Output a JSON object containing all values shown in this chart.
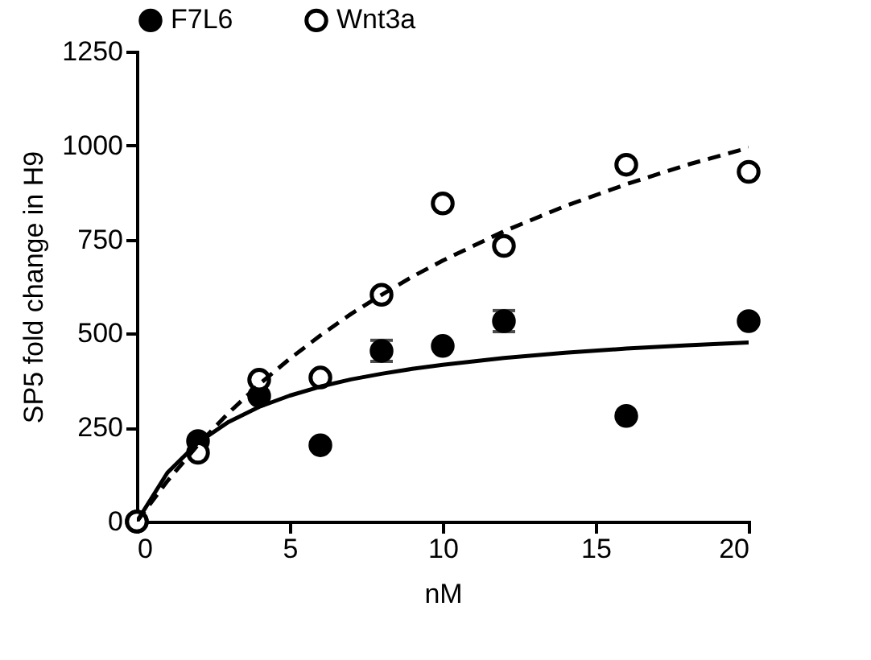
{
  "chart_data": {
    "type": "scatter",
    "xlabel": "nM",
    "ylabel": "SP5 fold change in H9",
    "x": [
      0,
      2,
      4,
      6,
      8,
      10,
      12,
      16,
      20
    ],
    "series": [
      {
        "name": "F7L6",
        "type": "scatter",
        "color": "#000000",
        "marker": "circle",
        "values": [
          0,
          214,
          334,
          203,
          454,
          467,
          533,
          281,
          533
        ],
        "errors": [
          null,
          null,
          null,
          null,
          28,
          null,
          28,
          null,
          null
        ]
      },
      {
        "name": "Wnt3a",
        "type": "scatter",
        "color": "#000000",
        "marker": "circle",
        "values": [
          0,
          183,
          377,
          383,
          603,
          846,
          733,
          949,
          930
        ]
      },
      {
        "type": "line",
        "color": "#000000",
        "line_style": "solid",
        "x": [
          0,
          1,
          2,
          3,
          4,
          5,
          6,
          7,
          8,
          9,
          10,
          12,
          14,
          16,
          18,
          20
        ],
        "values": [
          0,
          130,
          210,
          265,
          305,
          335,
          359,
          378,
          393,
          406,
          417,
          435,
          449,
          460,
          469,
          476
        ]
      },
      {
        "type": "line",
        "color": "#000000",
        "line_style": "dashed",
        "x": [
          0,
          1,
          2,
          3,
          4,
          5,
          6,
          7,
          8,
          9,
          10,
          12,
          14,
          16,
          18,
          20
        ],
        "values": [
          0,
          108,
          204,
          289,
          365,
          433,
          495,
          552,
          603,
          651,
          694,
          772,
          839,
          897,
          949,
          994
        ]
      }
    ],
    "xlim": [
      0,
      20
    ],
    "xticks": [
      0,
      5,
      10,
      15,
      20
    ],
    "ylim": [
      0,
      1250
    ],
    "yticks": [
      0,
      250,
      500,
      750,
      1000,
      1250
    ],
    "grid": false,
    "legend": "top"
  }
}
